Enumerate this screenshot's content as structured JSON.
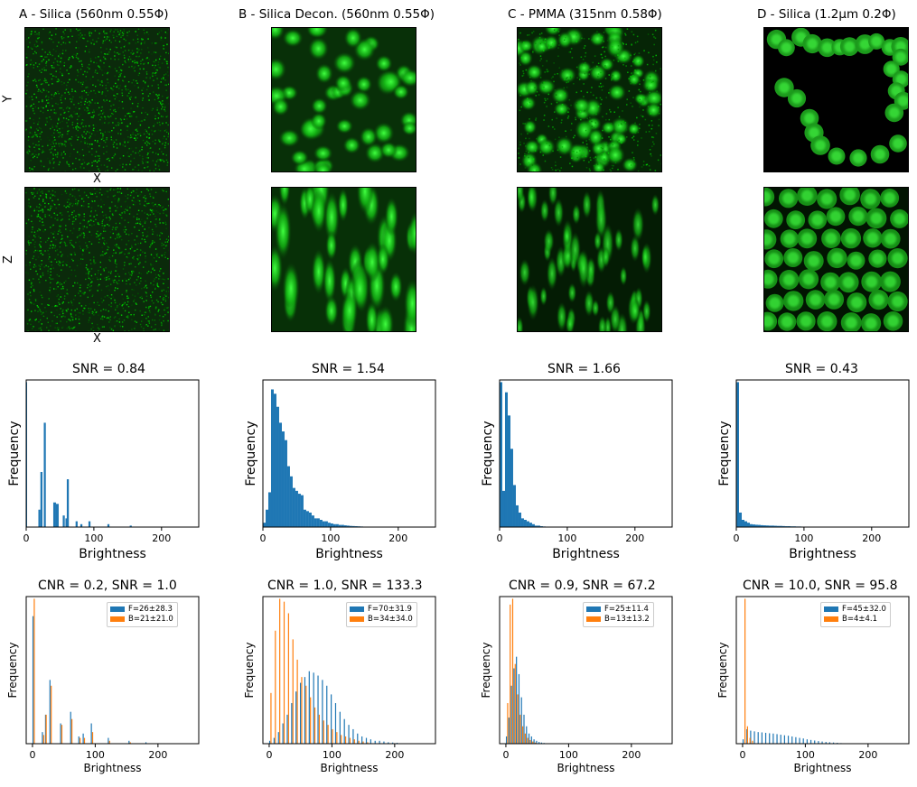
{
  "colors": {
    "foreground": "#1f77b4",
    "background": "#ff7f0e",
    "bar": "#1f77b4",
    "micro_green": "#1fd01f"
  },
  "panels": [
    {
      "title": "A - Silica (560nm 0.55Φ)",
      "image_top": {
        "texture": "noise"
      },
      "image_bottom": {
        "texture": "noise"
      },
      "top_ylabel": "Y",
      "top_xlabel": "X",
      "bottom_ylabel": "Z",
      "bottom_xlabel": "X"
    },
    {
      "title": "B - Silica Decon. (560nm 0.55Φ)",
      "image_top": {
        "texture": "blobs"
      },
      "image_bottom": {
        "texture": "streaks"
      }
    },
    {
      "title": "C - PMMA (315nm 0.58Φ)",
      "image_top": {
        "texture": "speckle-blobs"
      },
      "image_bottom": {
        "texture": "streaks"
      }
    },
    {
      "title": "D - Silica (1.2µm 0.2Φ)",
      "image_top": {
        "texture": "sparse-spheres"
      },
      "image_bottom": {
        "texture": "dense-spheres"
      }
    }
  ],
  "chart_data": [
    {
      "type": "bar",
      "title": "SNR = 0.84",
      "xlabel": "Brightness",
      "ylabel": "Frequency",
      "xlim": [
        0,
        255
      ],
      "xticks": [
        "0",
        "100",
        "200"
      ],
      "bins": [
        [
          0,
          1,
          1.0
        ],
        [
          18,
          3,
          0.12
        ],
        [
          21,
          3,
          0.38
        ],
        [
          26,
          3,
          0.72
        ],
        [
          40,
          4,
          0.17
        ],
        [
          44,
          4,
          0.16
        ],
        [
          54,
          3,
          0.08
        ],
        [
          58,
          3,
          0.06
        ],
        [
          60,
          3,
          0.33
        ],
        [
          73,
          3,
          0.04
        ],
        [
          80,
          3,
          0.02
        ],
        [
          92,
          3,
          0.04
        ],
        [
          120,
          3,
          0.02
        ],
        [
          153,
          3,
          0.01
        ]
      ]
    },
    {
      "type": "bar",
      "title": "SNR = 1.54",
      "xlabel": "Brightness",
      "ylabel": "Frequency",
      "xlim": [
        0,
        255
      ],
      "xticks": [
        "0",
        "100",
        "200"
      ],
      "bins": [
        [
          0,
          4,
          0.03
        ],
        [
          4,
          4,
          0.12
        ],
        [
          8,
          4,
          0.24
        ],
        [
          12,
          4,
          0.95
        ],
        [
          16,
          4,
          0.92
        ],
        [
          20,
          4,
          0.83
        ],
        [
          24,
          4,
          0.72
        ],
        [
          28,
          4,
          0.66
        ],
        [
          32,
          4,
          0.6
        ],
        [
          36,
          4,
          0.42
        ],
        [
          40,
          4,
          0.35
        ],
        [
          44,
          4,
          0.27
        ],
        [
          48,
          4,
          0.25
        ],
        [
          52,
          4,
          0.23
        ],
        [
          56,
          4,
          0.22
        ],
        [
          60,
          4,
          0.12
        ],
        [
          64,
          4,
          0.11
        ],
        [
          68,
          4,
          0.1
        ],
        [
          72,
          4,
          0.08
        ],
        [
          76,
          4,
          0.06
        ],
        [
          80,
          4,
          0.06
        ],
        [
          84,
          4,
          0.05
        ],
        [
          88,
          4,
          0.04
        ],
        [
          92,
          4,
          0.04
        ],
        [
          96,
          4,
          0.03
        ],
        [
          100,
          4,
          0.025
        ],
        [
          104,
          4,
          0.02
        ],
        [
          108,
          4,
          0.02
        ],
        [
          112,
          4,
          0.015
        ],
        [
          116,
          4,
          0.015
        ],
        [
          120,
          4,
          0.012
        ],
        [
          124,
          4,
          0.01
        ],
        [
          128,
          4,
          0.008
        ],
        [
          132,
          4,
          0.007
        ],
        [
          136,
          4,
          0.006
        ],
        [
          140,
          4,
          0.005
        ],
        [
          144,
          4,
          0.004
        ],
        [
          150,
          4,
          0.003
        ],
        [
          156,
          4,
          0.003
        ],
        [
          164,
          4,
          0.002
        ],
        [
          172,
          4,
          0.002
        ]
      ]
    },
    {
      "type": "bar",
      "title": "SNR = 1.66",
      "xlabel": "Brightness",
      "ylabel": "Frequency",
      "xlim": [
        0,
        255
      ],
      "xticks": [
        "0",
        "100",
        "200"
      ],
      "bins": [
        [
          0,
          4,
          1.0
        ],
        [
          4,
          4,
          0.25
        ],
        [
          8,
          4,
          0.93
        ],
        [
          12,
          4,
          0.77
        ],
        [
          16,
          4,
          0.54
        ],
        [
          20,
          4,
          0.29
        ],
        [
          24,
          4,
          0.15
        ],
        [
          28,
          4,
          0.1
        ],
        [
          32,
          4,
          0.06
        ],
        [
          36,
          4,
          0.05
        ],
        [
          40,
          4,
          0.04
        ],
        [
          44,
          4,
          0.03
        ],
        [
          48,
          4,
          0.02
        ],
        [
          52,
          4,
          0.01
        ],
        [
          56,
          4,
          0.01
        ],
        [
          60,
          4,
          0.006
        ],
        [
          64,
          4,
          0.004
        ]
      ]
    },
    {
      "type": "bar",
      "title": "SNR = 0.43",
      "xlabel": "Brightness",
      "ylabel": "Frequency",
      "xlim": [
        0,
        255
      ],
      "xticks": [
        "0",
        "100",
        "200"
      ],
      "bins": [
        [
          0,
          4,
          1.0
        ],
        [
          4,
          4,
          0.1
        ],
        [
          8,
          4,
          0.05
        ],
        [
          12,
          4,
          0.04
        ],
        [
          16,
          4,
          0.03
        ],
        [
          20,
          4,
          0.02
        ],
        [
          24,
          4,
          0.018
        ],
        [
          28,
          4,
          0.016
        ],
        [
          32,
          4,
          0.015
        ],
        [
          36,
          4,
          0.013
        ],
        [
          40,
          4,
          0.012
        ],
        [
          44,
          4,
          0.011
        ],
        [
          48,
          4,
          0.01
        ],
        [
          52,
          4,
          0.01
        ],
        [
          56,
          4,
          0.009
        ],
        [
          60,
          4,
          0.008
        ],
        [
          64,
          4,
          0.008
        ],
        [
          68,
          4,
          0.007
        ],
        [
          72,
          4,
          0.006
        ],
        [
          76,
          4,
          0.006
        ],
        [
          80,
          4,
          0.005
        ],
        [
          84,
          4,
          0.005
        ],
        [
          88,
          4,
          0.004
        ],
        [
          92,
          4,
          0.004
        ],
        [
          96,
          4,
          0.003
        ],
        [
          100,
          4,
          0.003
        ],
        [
          104,
          4,
          0.003
        ],
        [
          108,
          4,
          0.002
        ]
      ]
    },
    {
      "type": "bar",
      "title": "CNR = 0.2, SNR = 1.0",
      "xlabel": "Brightness",
      "ylabel": "Frequency",
      "xlim": [
        -10,
        265
      ],
      "xticks": [
        "0",
        "100",
        "200"
      ],
      "series": [
        {
          "name": "F=26±28.3",
          "bins": [
            [
              0,
              0.88
            ],
            [
              15,
              0.08
            ],
            [
              20,
              0.2
            ],
            [
              27,
              0.44
            ],
            [
              44,
              0.14
            ],
            [
              60,
              0.22
            ],
            [
              73,
              0.05
            ],
            [
              80,
              0.07
            ],
            [
              93,
              0.14
            ],
            [
              120,
              0.04
            ],
            [
              153,
              0.02
            ],
            [
              180,
              0.01
            ]
          ]
        },
        {
          "name": "B=21±21.0",
          "bins": [
            [
              2,
              1.0
            ],
            [
              17,
              0.06
            ],
            [
              21,
              0.2
            ],
            [
              29,
              0.4
            ],
            [
              46,
              0.13
            ],
            [
              62,
              0.17
            ],
            [
              75,
              0.04
            ],
            [
              82,
              0.04
            ],
            [
              95,
              0.08
            ],
            [
              122,
              0.02
            ],
            [
              155,
              0.01
            ]
          ]
        }
      ]
    },
    {
      "type": "bar",
      "title": "CNR = 1.0, SNR = 133.3",
      "xlabel": "Brightness",
      "ylabel": "Frequency",
      "xlim": [
        -10,
        265
      ],
      "xticks": [
        "0",
        "100",
        "200"
      ],
      "series": [
        {
          "name": "F=70±31.9",
          "bins": [
            [
              0,
              0.02
            ],
            [
              7,
              0.04
            ],
            [
              14,
              0.08
            ],
            [
              21,
              0.14
            ],
            [
              28,
              0.2
            ],
            [
              35,
              0.28
            ],
            [
              42,
              0.36
            ],
            [
              49,
              0.42
            ],
            [
              56,
              0.46
            ],
            [
              63,
              0.5
            ],
            [
              70,
              0.49
            ],
            [
              77,
              0.47
            ],
            [
              84,
              0.44
            ],
            [
              91,
              0.4
            ],
            [
              98,
              0.34
            ],
            [
              105,
              0.28
            ],
            [
              112,
              0.22
            ],
            [
              119,
              0.17
            ],
            [
              126,
              0.13
            ],
            [
              133,
              0.1
            ],
            [
              140,
              0.07
            ],
            [
              147,
              0.05
            ],
            [
              154,
              0.04
            ],
            [
              161,
              0.03
            ],
            [
              168,
              0.02
            ],
            [
              175,
              0.02
            ],
            [
              182,
              0.015
            ],
            [
              189,
              0.01
            ],
            [
              196,
              0.008
            ],
            [
              203,
              0.006
            ]
          ]
        },
        {
          "name": "B=34±34.0",
          "bins": [
            [
              2,
              0.35
            ],
            [
              9,
              0.78
            ],
            [
              16,
              1.0
            ],
            [
              23,
              0.98
            ],
            [
              30,
              0.9
            ],
            [
              37,
              0.72
            ],
            [
              44,
              0.58
            ],
            [
              51,
              0.46
            ],
            [
              58,
              0.4
            ],
            [
              65,
              0.32
            ],
            [
              72,
              0.25
            ],
            [
              79,
              0.2
            ],
            [
              86,
              0.16
            ],
            [
              93,
              0.13
            ],
            [
              100,
              0.1
            ],
            [
              107,
              0.08
            ],
            [
              114,
              0.06
            ],
            [
              121,
              0.05
            ],
            [
              128,
              0.04
            ],
            [
              135,
              0.03
            ],
            [
              142,
              0.02
            ],
            [
              149,
              0.015
            ],
            [
              156,
              0.01
            ]
          ]
        }
      ]
    },
    {
      "type": "bar",
      "title": "CNR = 0.9, SNR = 67.2",
      "xlabel": "Brightness",
      "ylabel": "Frequency",
      "xlim": [
        -10,
        265
      ],
      "xticks": [
        "0",
        "100",
        "200"
      ],
      "series": [
        {
          "name": "F=25±11.4",
          "bins": [
            [
              0,
              0.05
            ],
            [
              4,
              0.18
            ],
            [
              8,
              0.4
            ],
            [
              12,
              0.52
            ],
            [
              16,
              0.6
            ],
            [
              20,
              0.48
            ],
            [
              24,
              0.32
            ],
            [
              28,
              0.2
            ],
            [
              32,
              0.12
            ],
            [
              36,
              0.07
            ],
            [
              40,
              0.05
            ],
            [
              44,
              0.03
            ],
            [
              48,
              0.02
            ],
            [
              52,
              0.012
            ],
            [
              56,
              0.008
            ],
            [
              60,
              0.005
            ]
          ]
        },
        {
          "name": "B=13±13.2",
          "bins": [
            [
              2,
              0.28
            ],
            [
              6,
              0.96
            ],
            [
              10,
              1.0
            ],
            [
              14,
              0.55
            ],
            [
              18,
              0.34
            ],
            [
              22,
              0.2
            ],
            [
              26,
              0.12
            ],
            [
              30,
              0.07
            ],
            [
              34,
              0.04
            ],
            [
              38,
              0.025
            ],
            [
              42,
              0.015
            ],
            [
              46,
              0.008
            ]
          ]
        }
      ]
    },
    {
      "type": "bar",
      "title": "CNR = 10.0, SNR = 95.8",
      "xlabel": "Brightness",
      "ylabel": "Frequency",
      "xlim": [
        -10,
        265
      ],
      "xticks": [
        "0",
        "100",
        "200"
      ],
      "series": [
        {
          "name": "F=45±32.0",
          "bins": [
            [
              0,
              0.03
            ],
            [
              6,
              0.1
            ],
            [
              12,
              0.09
            ],
            [
              18,
              0.085
            ],
            [
              24,
              0.08
            ],
            [
              30,
              0.078
            ],
            [
              36,
              0.075
            ],
            [
              42,
              0.072
            ],
            [
              48,
              0.07
            ],
            [
              54,
              0.066
            ],
            [
              60,
              0.062
            ],
            [
              66,
              0.058
            ],
            [
              72,
              0.055
            ],
            [
              78,
              0.05
            ],
            [
              84,
              0.045
            ],
            [
              90,
              0.04
            ],
            [
              96,
              0.036
            ],
            [
              102,
              0.03
            ],
            [
              108,
              0.026
            ],
            [
              114,
              0.022
            ],
            [
              120,
              0.018
            ],
            [
              126,
              0.015
            ],
            [
              132,
              0.012
            ],
            [
              138,
              0.01
            ],
            [
              144,
              0.008
            ],
            [
              150,
              0.006
            ],
            [
              156,
              0.004
            ]
          ]
        },
        {
          "name": "B=4±4.1",
          "bins": [
            [
              3,
              1.0
            ],
            [
              7,
              0.12
            ],
            [
              11,
              0.04
            ],
            [
              15,
              0.02
            ]
          ]
        }
      ]
    }
  ]
}
